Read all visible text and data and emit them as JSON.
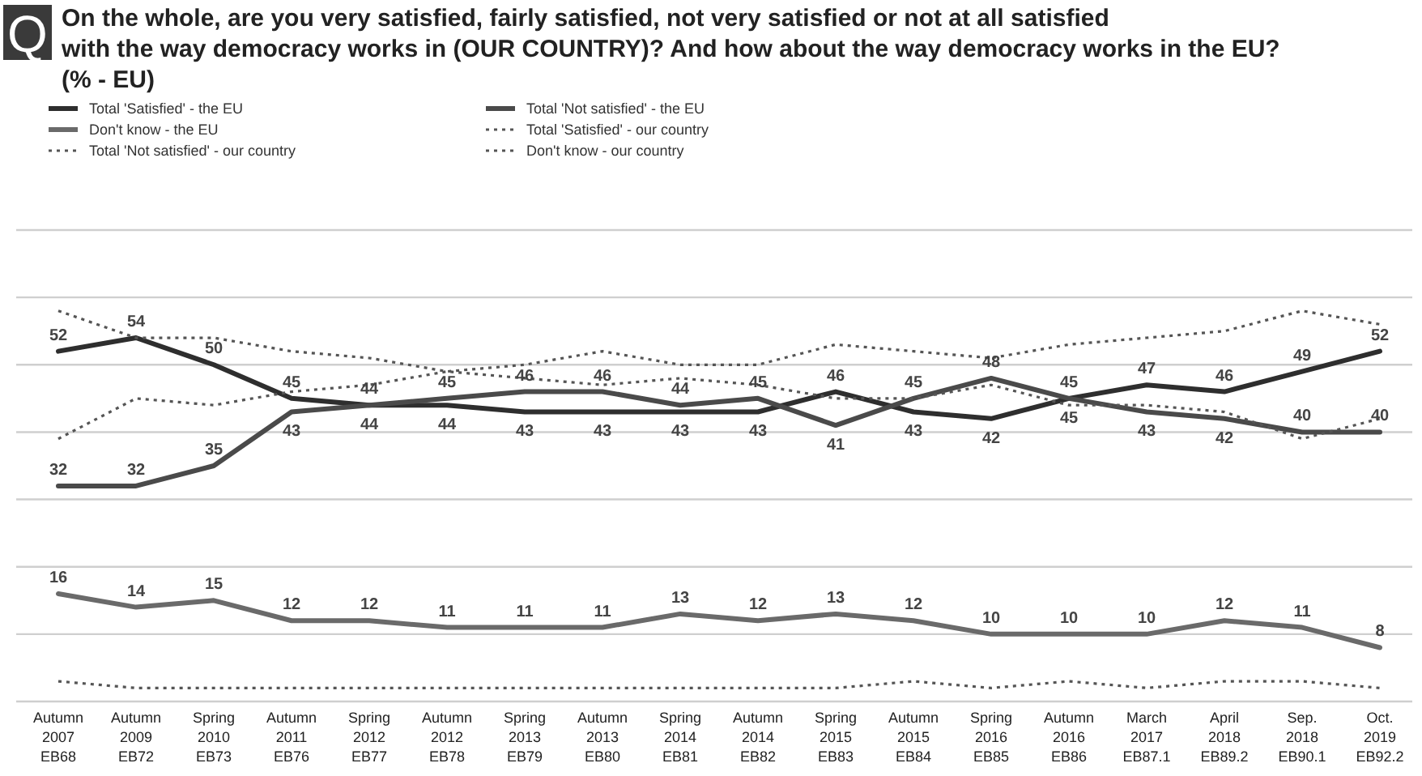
{
  "chart_data": {
    "type": "line",
    "title": "On the whole, are you very satisfied, fairly satisfied, not very satisfied or not at all satisfied with the way democracy works in (OUR COUNTRY)?  And how about the way democracy works in the EU? (% - EU)",
    "annotations": [
      "Q"
    ],
    "categories": [
      "Autumn\n2007\nEB68",
      "Autumn\n2009\nEB72",
      "Spring\n2010\nEB73",
      "Autumn\n2011\nEB76",
      "Spring\n2012\nEB77",
      "Autumn\n2012\nEB78",
      "Spring\n2013\nEB79",
      "Autumn\n2013\nEB80",
      "Spring\n2014\nEB81",
      "Autumn\n2014\nEB82",
      "Spring\n2015\nEB83",
      "Autumn\n2015\nEB84",
      "Spring\n2016\nEB85",
      "Autumn\n2016\nEB86",
      "March\n2017\nEB87.1",
      "April\n2018\nEB89.2",
      "Sep.\n2018\nEB90.1",
      "Oct.\n2019\nEB92.2"
    ],
    "series": [
      {
        "name": "Total 'Satisfied' - the EU",
        "color": "#2e2e2e",
        "line_style": "solid",
        "values": [
          52,
          54,
          50,
          45,
          44,
          44,
          43,
          43,
          43,
          43,
          46,
          43,
          42,
          45,
          47,
          46,
          49,
          52
        ],
        "value_labels": [
          "52",
          "54",
          "50",
          "45",
          "44",
          "44",
          "43",
          "43",
          "43",
          "43",
          "46",
          "43",
          "42",
          "45",
          "47",
          "46",
          "49",
          "52"
        ]
      },
      {
        "name": "Total 'Not satisfied' - the EU",
        "color": "#4a4a4a",
        "line_style": "solid",
        "values": [
          32,
          32,
          35,
          43,
          44,
          45,
          46,
          46,
          44,
          45,
          41,
          45,
          48,
          45,
          43,
          42,
          40,
          40
        ],
        "value_labels": [
          "32",
          "32",
          "35",
          "43",
          "44",
          "45",
          "46",
          "46",
          "44",
          "45",
          "41",
          "45",
          "48",
          "45",
          "43",
          "42",
          "40",
          "40"
        ]
      },
      {
        "name": "Don't know - the EU",
        "color": "#6a6a6a",
        "line_style": "solid",
        "values": [
          16,
          14,
          15,
          12,
          12,
          11,
          11,
          11,
          13,
          12,
          13,
          12,
          10,
          10,
          10,
          12,
          11,
          8
        ],
        "value_labels": [
          "16",
          "14",
          "15",
          "12",
          "12",
          "11",
          "11",
          "11",
          "13",
          "12",
          "13",
          "12",
          "10",
          "10",
          "10",
          "12",
          "11",
          "8"
        ]
      },
      {
        "name": "Total 'Satisfied' - our country",
        "color": "#555555",
        "line_style": "dotted",
        "values": [
          58,
          54,
          54,
          52,
          51,
          49,
          50,
          52,
          50,
          50,
          53,
          52,
          51,
          53,
          54,
          55,
          58,
          56
        ]
      },
      {
        "name": "Total 'Not satisfied' - our country",
        "color": "#555555",
        "line_style": "dotted",
        "values": [
          39,
          45,
          44,
          46,
          47,
          49,
          48,
          47,
          48,
          47,
          45,
          45,
          47,
          44,
          44,
          43,
          39,
          42
        ]
      },
      {
        "name": "Don't know - our country",
        "color": "#555555",
        "line_style": "dotted",
        "values": [
          3,
          2,
          2,
          2,
          2,
          2,
          2,
          2,
          2,
          2,
          2,
          3,
          2,
          3,
          2,
          3,
          3,
          2
        ]
      }
    ],
    "ylim": [
      0,
      70
    ],
    "yticks": [
      {
        "value": 0,
        "label": null
      },
      {
        "value": 10,
        "label": null
      },
      {
        "value": 20,
        "label": null
      },
      {
        "value": 30,
        "label": null
      },
      {
        "value": 40,
        "label": null
      },
      {
        "value": 50,
        "label": null
      },
      {
        "value": 60,
        "label": null
      },
      {
        "value": 70,
        "label": null
      }
    ],
    "tick_labels": "x",
    "grid": "y",
    "legend": "top",
    "marker": "none"
  }
}
